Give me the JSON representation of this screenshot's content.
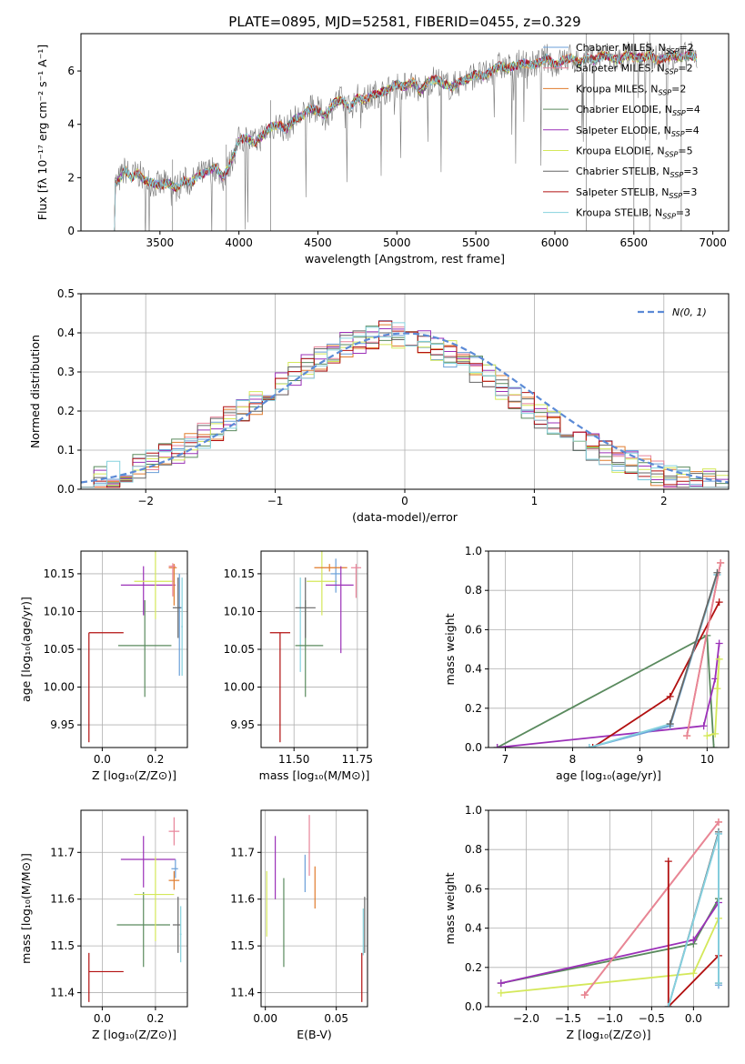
{
  "colors": {
    "Chabrier MILES": "#6a9fd8",
    "Salpeter MILES": "#e8849a",
    "Kroupa MILES": "#e07b2c",
    "Chabrier ELODIE": "#5a8a5e",
    "Salpeter ELODIE": "#9b30b8",
    "Kroupa ELODIE": "#d4e85a",
    "Chabrier STELIB": "#666666",
    "Salpeter STELIB": "#b21010",
    "Kroupa STELIB": "#86d2de"
  },
  "chart_data": [
    {
      "id": "spectrum",
      "type": "line",
      "title": "PLATE=0895, MJD=52581, FIBERID=0455, z=0.329",
      "xlabel": "wavelength [Angstrom, rest frame]",
      "ylabel": "Flux [fλ 10⁻¹⁷ erg cm⁻² s⁻¹ A⁻¹]",
      "xlim": [
        3000,
        7100
      ],
      "ylim": [
        0,
        7.4
      ],
      "xticks": [
        3500,
        4000,
        4500,
        5000,
        5500,
        6000,
        6500,
        7000
      ],
      "yticks": [
        0,
        2,
        4,
        6
      ],
      "legend_position": "top-right",
      "legend": [
        {
          "name": "Chabrier MILES",
          "nssp": "2"
        },
        {
          "name": "Salpeter MILES",
          "nssp": "2"
        },
        {
          "name": "Kroupa MILES",
          "nssp": "2"
        },
        {
          "name": "Chabrier ELODIE",
          "nssp": "4"
        },
        {
          "name": "Salpeter ELODIE",
          "nssp": "4"
        },
        {
          "name": "Kroupa ELODIE",
          "nssp": "5"
        },
        {
          "name": "Chabrier STELIB",
          "nssp": "3"
        },
        {
          "name": "Salpeter STELIB",
          "nssp": "3"
        },
        {
          "name": "Kroupa STELIB",
          "nssp": "3"
        }
      ],
      "model_curve": {
        "x": [
          3200,
          3240,
          3280,
          3320,
          3360,
          3400,
          3450,
          3500,
          3550,
          3600,
          3650,
          3700,
          3750,
          3800,
          3850,
          3900,
          3950,
          4000,
          4050,
          4100,
          4150,
          4200,
          4250,
          4300,
          4350,
          4400,
          4450,
          4500,
          4550,
          4600,
          4650,
          4700,
          4750,
          4800,
          4850,
          4900,
          4950,
          5000,
          5050,
          5100,
          5150,
          5200,
          5250,
          5300,
          5350,
          5400,
          5450,
          5500,
          5550,
          5600,
          5650,
          5700,
          5750,
          5800,
          5850,
          5900,
          5950,
          6000,
          6050,
          6100,
          6150,
          6200,
          6250,
          6300,
          6350,
          6400,
          6450,
          6500,
          6550,
          6600,
          6650,
          6700,
          6750,
          6800,
          6850,
          6900
        ],
        "y": [
          1.6,
          1.9,
          2.3,
          2.0,
          2.2,
          1.9,
          1.8,
          1.7,
          1.8,
          1.6,
          1.9,
          1.8,
          2.1,
          2.2,
          2.4,
          2.0,
          2.6,
          3.4,
          3.5,
          3.3,
          3.6,
          3.9,
          4.0,
          3.8,
          4.2,
          4.3,
          4.6,
          4.5,
          4.3,
          4.8,
          4.9,
          4.6,
          5.0,
          4.9,
          5.1,
          5.2,
          5.3,
          5.5,
          5.4,
          5.6,
          5.2,
          5.6,
          5.7,
          5.5,
          5.4,
          5.6,
          5.7,
          5.9,
          5.8,
          6.0,
          6.2,
          6.1,
          6.2,
          6.3,
          6.2,
          6.3,
          6.5,
          6.2,
          6.4,
          6.5,
          6.3,
          6.5,
          6.4,
          6.6,
          6.5,
          6.4,
          6.6,
          6.5,
          6.5,
          6.6,
          6.4,
          6.5,
          6.6,
          6.5,
          6.6,
          6.5
        ]
      }
    },
    {
      "id": "residuals",
      "type": "line",
      "xlabel": "(data-model)/error",
      "ylabel": "Normed distribution",
      "xlim": [
        -2.5,
        2.5
      ],
      "ylim": [
        0,
        0.5
      ],
      "xticks": [
        -2,
        -1,
        0,
        1,
        2
      ],
      "yticks": [
        0.0,
        0.1,
        0.2,
        0.3,
        0.4,
        0.5
      ],
      "legend": [
        {
          "name": "𝒩(0,1)"
        }
      ],
      "legend_position": "top-right",
      "gaussian": {
        "mean": 0,
        "sigma": 1
      }
    },
    {
      "id": "age_vs_Z",
      "type": "scatter",
      "xlabel": "Z [log₁₀(Z/Z⊙)]",
      "ylabel": "age  [log₁₀(age/yr)]",
      "xlim": [
        -0.08,
        0.32
      ],
      "ylim": [
        9.92,
        10.18
      ],
      "xticks": [
        0.0,
        0.2
      ],
      "yticks": [
        9.95,
        10.0,
        10.05,
        10.1,
        10.15
      ],
      "points": [
        {
          "model": "Salpeter STELIB",
          "x": -0.05,
          "y": 10.072,
          "xerr": [
            0.0,
            0.13
          ],
          "yerr": [
            0.145,
            0.0
          ]
        },
        {
          "model": "Chabrier ELODIE",
          "x": 0.16,
          "y": 10.055,
          "xerr": [
            0.1,
            0.1
          ],
          "yerr": [
            0.068,
            0.06
          ]
        },
        {
          "model": "Salpeter ELODIE",
          "x": 0.155,
          "y": 10.135,
          "xerr": [
            0.085,
            0.12
          ],
          "yerr": [
            0.04,
            0.025
          ]
        },
        {
          "model": "Kroupa ELODIE",
          "x": 0.2,
          "y": 10.14,
          "xerr": [
            0.08,
            0.07
          ],
          "yerr": [
            0.05,
            0.04
          ]
        },
        {
          "model": "Kroupa MILES",
          "x": 0.27,
          "y": 10.158,
          "xerr": [
            0.02,
            0.01
          ],
          "yerr": [
            0.05,
            0.005
          ]
        },
        {
          "model": "Salpeter MILES",
          "x": 0.265,
          "y": 10.16,
          "xerr": [
            0.015,
            0.01
          ],
          "yerr": [
            0.04,
            0.004
          ]
        },
        {
          "model": "Chabrier MILES",
          "x": 0.29,
          "y": 10.105,
          "xerr": [
            0.005,
            0.01
          ],
          "yerr": [
            0.09,
            0.045
          ]
        },
        {
          "model": "Chabrier STELIB",
          "x": 0.285,
          "y": 10.105,
          "xerr": [
            0.02,
            0.01
          ],
          "yerr": [
            0.04,
            0.04
          ]
        },
        {
          "model": "Kroupa STELIB",
          "x": 0.3,
          "y": 10.08,
          "xerr": [
            0.003,
            0.003
          ],
          "yerr": [
            0.065,
            0.065
          ]
        }
      ]
    },
    {
      "id": "age_vs_mass",
      "type": "scatter",
      "xlabel": "mass [log₁₀(M/M⊙)]",
      "xlim": [
        11.37,
        11.79
      ],
      "ylim": [
        9.92,
        10.18
      ],
      "xticks": [
        11.5,
        11.75
      ],
      "xticklabels": [
        "11.50",
        "11.75"
      ],
      "yticks": [
        9.95,
        10.0,
        10.05,
        10.1,
        10.15
      ],
      "points": [
        {
          "model": "Salpeter STELIB",
          "x": 11.445,
          "y": 10.072,
          "xerr": [
            0.04,
            0.04
          ],
          "yerr": [
            0.145,
            0.0
          ]
        },
        {
          "model": "Kroupa STELIB",
          "x": 11.525,
          "y": 10.105,
          "xerr": [
            0.003,
            0.003
          ],
          "yerr": [
            0.085,
            0.04
          ]
        },
        {
          "model": "Chabrier ELODIE",
          "x": 11.545,
          "y": 10.055,
          "xerr": [
            0.04,
            0.07
          ],
          "yerr": [
            0.068,
            0.06
          ]
        },
        {
          "model": "Chabrier STELIB",
          "x": 11.545,
          "y": 10.105,
          "xerr": [
            0.04,
            0.04
          ],
          "yerr": [
            0.04,
            0.04
          ]
        },
        {
          "model": "Kroupa ELODIE",
          "x": 11.61,
          "y": 10.14,
          "xerr": [
            0.06,
            0.06
          ],
          "yerr": [
            0.045,
            0.04
          ]
        },
        {
          "model": "Chabrier MILES",
          "x": 11.665,
          "y": 10.15,
          "xerr": [
            0.02,
            0.02
          ],
          "yerr": [
            0.025,
            0.02
          ]
        },
        {
          "model": "Kroupa MILES",
          "x": 11.64,
          "y": 10.158,
          "xerr": [
            0.06,
            0.07
          ],
          "yerr": [
            0.005,
            0.005
          ]
        },
        {
          "model": "Salpeter ELODIE",
          "x": 11.685,
          "y": 10.135,
          "xerr": [
            0.06,
            0.05
          ],
          "yerr": [
            0.09,
            0.025
          ]
        },
        {
          "model": "Salpeter MILES",
          "x": 11.745,
          "y": 10.158,
          "xerr": [
            0.02,
            0.02
          ],
          "yerr": [
            0.04,
            0.005
          ]
        }
      ]
    },
    {
      "id": "weight_vs_age",
      "type": "line",
      "xlabel": "age  [log₁₀(age/yr)]",
      "ylabel": "mass weight",
      "xlim": [
        6.75,
        10.32
      ],
      "ylim": [
        0,
        1.0
      ],
      "xticks": [
        7,
        8,
        9,
        10
      ],
      "yticks": [
        0.0,
        0.2,
        0.4,
        0.6,
        0.8,
        1.0
      ],
      "series": [
        {
          "model": "Chabrier ELODIE",
          "x": [
            6.88,
            10.0,
            10.1
          ],
          "y": [
            0.0,
            0.57,
            0.0
          ]
        },
        {
          "model": "Salpeter ELODIE",
          "x": [
            6.88,
            9.95,
            10.12,
            10.18
          ],
          "y": [
            0.0,
            0.11,
            0.35,
            0.53
          ]
        },
        {
          "model": "Salpeter STELIB",
          "x": [
            8.3,
            9.45,
            10.18
          ],
          "y": [
            0.0,
            0.26,
            0.74
          ]
        },
        {
          "model": "Chabrier MILES",
          "x": [
            8.25,
            9.45,
            10.15
          ],
          "y": [
            0.0,
            0.11,
            0.88
          ]
        },
        {
          "model": "Kroupa STELIB",
          "x": [
            8.25,
            9.45,
            10.15
          ],
          "y": [
            0.0,
            0.12,
            0.88
          ]
        },
        {
          "model": "Kroupa MILES",
          "x": [
            9.7,
            10.2
          ],
          "y": [
            0.06,
            0.94
          ]
        },
        {
          "model": "Salpeter MILES",
          "x": [
            9.7,
            10.2
          ],
          "y": [
            0.06,
            0.94
          ]
        },
        {
          "model": "Kroupa ELODIE",
          "x": [
            10.0,
            10.12,
            10.18,
            10.15
          ],
          "y": [
            0.06,
            0.07,
            0.45,
            0.3
          ]
        },
        {
          "model": "Chabrier STELIB",
          "x": [
            9.45,
            10.15
          ],
          "y": [
            0.12,
            0.89
          ]
        }
      ]
    },
    {
      "id": "mass_vs_Z",
      "type": "scatter",
      "xlabel": "Z [log₁₀(Z/Z⊙)]",
      "ylabel": "mass [log₁₀(M/M⊙)]",
      "xlim": [
        -0.08,
        0.32
      ],
      "ylim": [
        11.37,
        11.79
      ],
      "xticks": [
        0.0,
        0.2
      ],
      "yticks": [
        11.4,
        11.5,
        11.6,
        11.7
      ],
      "points": [
        {
          "model": "Salpeter STELIB",
          "x": -0.05,
          "y": 11.445,
          "xerr": [
            0.0,
            0.13
          ],
          "yerr": [
            0.065,
            0.04
          ]
        },
        {
          "model": "Chabrier ELODIE",
          "x": 0.155,
          "y": 11.545,
          "xerr": [
            0.1,
            0.1
          ],
          "yerr": [
            0.09,
            0.07
          ]
        },
        {
          "model": "Salpeter ELODIE",
          "x": 0.155,
          "y": 11.685,
          "xerr": [
            0.085,
            0.12
          ],
          "yerr": [
            0.06,
            0.05
          ]
        },
        {
          "model": "Kroupa ELODIE",
          "x": 0.2,
          "y": 11.61,
          "xerr": [
            0.08,
            0.07
          ],
          "yerr": [
            0.1,
            0.08
          ]
        },
        {
          "model": "Chabrier MILES",
          "x": 0.275,
          "y": 11.665,
          "xerr": [
            0.015,
            0.01
          ],
          "yerr": [
            0.02,
            0.02
          ]
        },
        {
          "model": "Kroupa MILES",
          "x": 0.27,
          "y": 11.64,
          "xerr": [
            0.02,
            0.02
          ],
          "yerr": [
            0.02,
            0.02
          ]
        },
        {
          "model": "Salpeter MILES",
          "x": 0.27,
          "y": 11.745,
          "xerr": [
            0.02,
            0.02
          ],
          "yerr": [
            0.03,
            0.03
          ]
        },
        {
          "model": "Chabrier STELIB",
          "x": 0.285,
          "y": 11.545,
          "xerr": [
            0.02,
            0.01
          ],
          "yerr": [
            0.06,
            0.06
          ]
        },
        {
          "model": "Kroupa STELIB",
          "x": 0.295,
          "y": 11.525,
          "xerr": [
            0.003,
            0.003
          ],
          "yerr": [
            0.06,
            0.06
          ]
        }
      ]
    },
    {
      "id": "mass_vs_ebv",
      "type": "scatter",
      "xlabel": "E(B-V)",
      "xlim": [
        -0.003,
        0.072
      ],
      "ylim": [
        11.37,
        11.79
      ],
      "xticks": [
        0.0,
        0.05
      ],
      "xticklabels": [
        "0.00",
        "0.05"
      ],
      "yticks": [
        11.4,
        11.5,
        11.6,
        11.7
      ],
      "points": [
        {
          "model": "Kroupa ELODIE",
          "x": 0.001,
          "y": 11.6,
          "yerr": [
            0.08,
            0.06
          ]
        },
        {
          "model": "Salpeter ELODIE",
          "x": 0.007,
          "y": 11.685,
          "yerr": [
            0.085,
            0.05
          ]
        },
        {
          "model": "Chabrier ELODIE",
          "x": 0.013,
          "y": 11.545,
          "yerr": [
            0.09,
            0.1
          ]
        },
        {
          "model": "Chabrier MILES",
          "x": 0.028,
          "y": 11.665,
          "yerr": [
            0.05,
            0.03
          ]
        },
        {
          "model": "Salpeter MILES",
          "x": 0.031,
          "y": 11.72,
          "yerr": [
            0.07,
            0.06
          ]
        },
        {
          "model": "Kroupa MILES",
          "x": 0.035,
          "y": 11.625,
          "yerr": [
            0.045,
            0.045
          ]
        },
        {
          "model": "Salpeter STELIB",
          "x": 0.068,
          "y": 11.445,
          "yerr": [
            0.065,
            0.04
          ]
        },
        {
          "model": "Chabrier STELIB",
          "x": 0.07,
          "y": 11.545,
          "yerr": [
            0.06,
            0.06
          ]
        },
        {
          "model": "Kroupa STELIB",
          "x": 0.069,
          "y": 11.53,
          "yerr": [
            0.05,
            0.05
          ]
        }
      ]
    },
    {
      "id": "weight_vs_Z",
      "type": "line",
      "xlabel": "Z [log₁₀(Z/Z⊙)]",
      "ylabel": "mass weight",
      "xlim": [
        -2.45,
        0.42
      ],
      "ylim": [
        0,
        1.0
      ],
      "xticks": [
        -2.0,
        -1.5,
        -1.0,
        -0.5,
        0.0
      ],
      "xticklabels": [
        "−2.0",
        "−1.5",
        "−1.0",
        "−0.5",
        "0.0"
      ],
      "yticks": [
        0.0,
        0.2,
        0.4,
        0.6,
        0.8,
        1.0
      ],
      "series": [
        {
          "model": "Chabrier ELODIE",
          "x": [
            -2.3,
            0.0,
            0.3
          ],
          "y": [
            0.12,
            0.32,
            0.55
          ]
        },
        {
          "model": "Salpeter ELODIE",
          "x": [
            -2.3,
            0.0,
            0.3
          ],
          "y": [
            0.12,
            0.34,
            0.53
          ]
        },
        {
          "model": "Kroupa ELODIE",
          "x": [
            -2.3,
            0.0,
            0.3
          ],
          "y": [
            0.07,
            0.17,
            0.45
          ]
        },
        {
          "model": "Kroupa MILES",
          "x": [
            -1.3,
            0.3
          ],
          "y": [
            0.06,
            0.94
          ]
        },
        {
          "model": "Salpeter MILES",
          "x": [
            -1.3,
            0.3
          ],
          "y": [
            0.06,
            0.94
          ]
        },
        {
          "model": "Salpeter STELIB",
          "x": [
            -0.3,
            -0.3,
            0.3
          ],
          "y": [
            0.74,
            0.0,
            0.26
          ]
        },
        {
          "model": "Chabrier STELIB",
          "x": [
            -0.3,
            0.3,
            0.3
          ],
          "y": [
            0.0,
            0.89,
            0.12
          ]
        },
        {
          "model": "Chabrier MILES",
          "x": [
            -0.3,
            0.3,
            0.3
          ],
          "y": [
            0.0,
            0.88,
            0.11
          ]
        },
        {
          "model": "Kroupa STELIB",
          "x": [
            -0.3,
            0.3,
            0.3
          ],
          "y": [
            0.0,
            0.88,
            0.12
          ]
        }
      ]
    }
  ]
}
